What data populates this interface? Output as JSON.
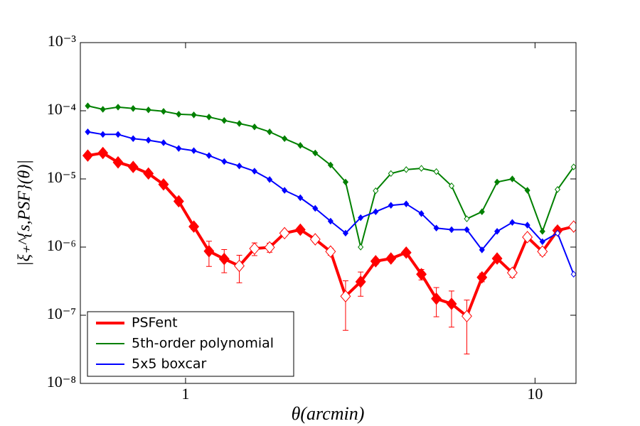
{
  "chart_data": {
    "type": "line",
    "xlabel": "θ(arcmin)",
    "ylabel": "|ξ₊^{s,PSF}(θ)|",
    "log_x": true,
    "log_y": true,
    "xlim": [
      0.5,
      13.1
    ],
    "ylim": [
      1e-08,
      0.001
    ],
    "xticks": [
      1,
      10
    ],
    "yticks": [
      {
        "value": 1e-08,
        "label": "10⁻⁸"
      },
      {
        "value": 1e-07,
        "label": "10⁻⁷"
      },
      {
        "value": 1e-06,
        "label": "10⁻⁶"
      },
      {
        "value": 1e-05,
        "label": "10⁻⁵"
      },
      {
        "value": 0.0001,
        "label": "10⁻⁴"
      },
      {
        "value": 0.001,
        "label": "10⁻³"
      }
    ],
    "legend": "lower left",
    "x": [
      0.525,
      0.58,
      0.641,
      0.708,
      0.783,
      0.865,
      0.956,
      1.056,
      1.167,
      1.29,
      1.425,
      1.575,
      1.74,
      1.92,
      2.13,
      2.35,
      2.6,
      2.87,
      3.17,
      3.5,
      3.87,
      4.28,
      4.73,
      5.22,
      5.77,
      6.38,
      7.05,
      7.79,
      8.61,
      9.51,
      10.5,
      11.6,
      12.9
    ],
    "series": [
      {
        "name": "PSFent",
        "color": "#ff0000",
        "line_width": 4,
        "marker_size": 8,
        "values": [
          2.2e-05,
          2.4e-05,
          1.75e-05,
          1.5e-05,
          1.2e-05,
          8.3e-06,
          4.7e-06,
          2e-06,
          8.7e-07,
          6.7e-07,
          5.3e-07,
          9.5e-07,
          9.9e-07,
          1.6e-06,
          1.8e-06,
          1.3e-06,
          8.6e-07,
          1.9e-07,
          3.1e-07,
          6.2e-07,
          6.8e-07,
          8.3e-07,
          4e-07,
          1.75e-07,
          1.47e-07,
          9.7e-08,
          3.6e-07,
          6.8e-07,
          4.2e-07,
          1.4e-06,
          8.6e-07,
          1.75e-06,
          2e-06
        ],
        "errors": [
          2e-06,
          2e-06,
          1.5e-06,
          1.3e-06,
          1e-06,
          7e-07,
          4e-07,
          2e-07,
          3.5e-07,
          2.5e-07,
          2.3e-07,
          2e-07,
          1.5e-07,
          1.5e-07,
          1.5e-07,
          1.2e-07,
          1e-07,
          1.3e-07,
          1.2e-07,
          6e-08,
          6e-08,
          7e-08,
          7e-08,
          8e-08,
          8e-08,
          7e-08,
          5e-08,
          6e-08,
          6e-08,
          1.5e-07,
          1e-07,
          2e-07,
          2e-07
        ],
        "hollow": [
          false,
          false,
          false,
          false,
          false,
          false,
          false,
          false,
          false,
          false,
          true,
          true,
          true,
          true,
          false,
          true,
          true,
          true,
          false,
          false,
          false,
          false,
          false,
          false,
          false,
          true,
          false,
          false,
          true,
          true,
          true,
          false,
          true
        ]
      },
      {
        "name": "5th-order polynomial",
        "color": "#008000",
        "line_width": 2,
        "marker_size": 4,
        "values": [
          0.000118,
          0.000105,
          0.000113,
          0.000108,
          0.000103,
          9.8e-05,
          8.9e-05,
          8.7e-05,
          8.1e-05,
          7.2e-05,
          6.5e-05,
          5.8e-05,
          4.9e-05,
          3.9e-05,
          3.1e-05,
          2.4e-05,
          1.6e-05,
          9e-06,
          1e-06,
          6.7e-06,
          1.2e-05,
          1.37e-05,
          1.43e-05,
          1.28e-05,
          7.9e-06,
          2.6e-06,
          3.3e-06,
          9e-06,
          1e-05,
          6.8e-06,
          1.7e-06,
          7e-06,
          1.5e-05
        ],
        "hollow": [
          false,
          false,
          false,
          false,
          false,
          false,
          false,
          false,
          false,
          false,
          false,
          false,
          false,
          false,
          false,
          false,
          false,
          false,
          true,
          true,
          true,
          true,
          true,
          true,
          true,
          true,
          false,
          false,
          false,
          false,
          false,
          true,
          true
        ]
      },
      {
        "name": "5x5 boxcar",
        "color": "#0000ff",
        "line_width": 2,
        "marker_size": 4,
        "values": [
          4.9e-05,
          4.5e-05,
          4.5e-05,
          3.9e-05,
          3.7e-05,
          3.4e-05,
          2.8e-05,
          2.6e-05,
          2.2e-05,
          1.8e-05,
          1.55e-05,
          1.3e-05,
          9.8e-06,
          6.8e-06,
          5.3e-06,
          3.7e-06,
          2.4e-06,
          1.6e-06,
          2.7e-06,
          3.3e-06,
          4.1e-06,
          4.3e-06,
          3.1e-06,
          1.9e-06,
          1.8e-06,
          1.8e-06,
          9.1e-07,
          1.7e-06,
          2.3e-06,
          2.1e-06,
          1.2e-06,
          1.6e-06,
          4e-07
        ],
        "hollow": [
          false,
          false,
          false,
          false,
          false,
          false,
          false,
          false,
          false,
          false,
          false,
          false,
          false,
          false,
          false,
          false,
          false,
          false,
          false,
          false,
          false,
          false,
          false,
          false,
          false,
          false,
          false,
          false,
          false,
          false,
          false,
          true,
          true
        ]
      }
    ]
  }
}
